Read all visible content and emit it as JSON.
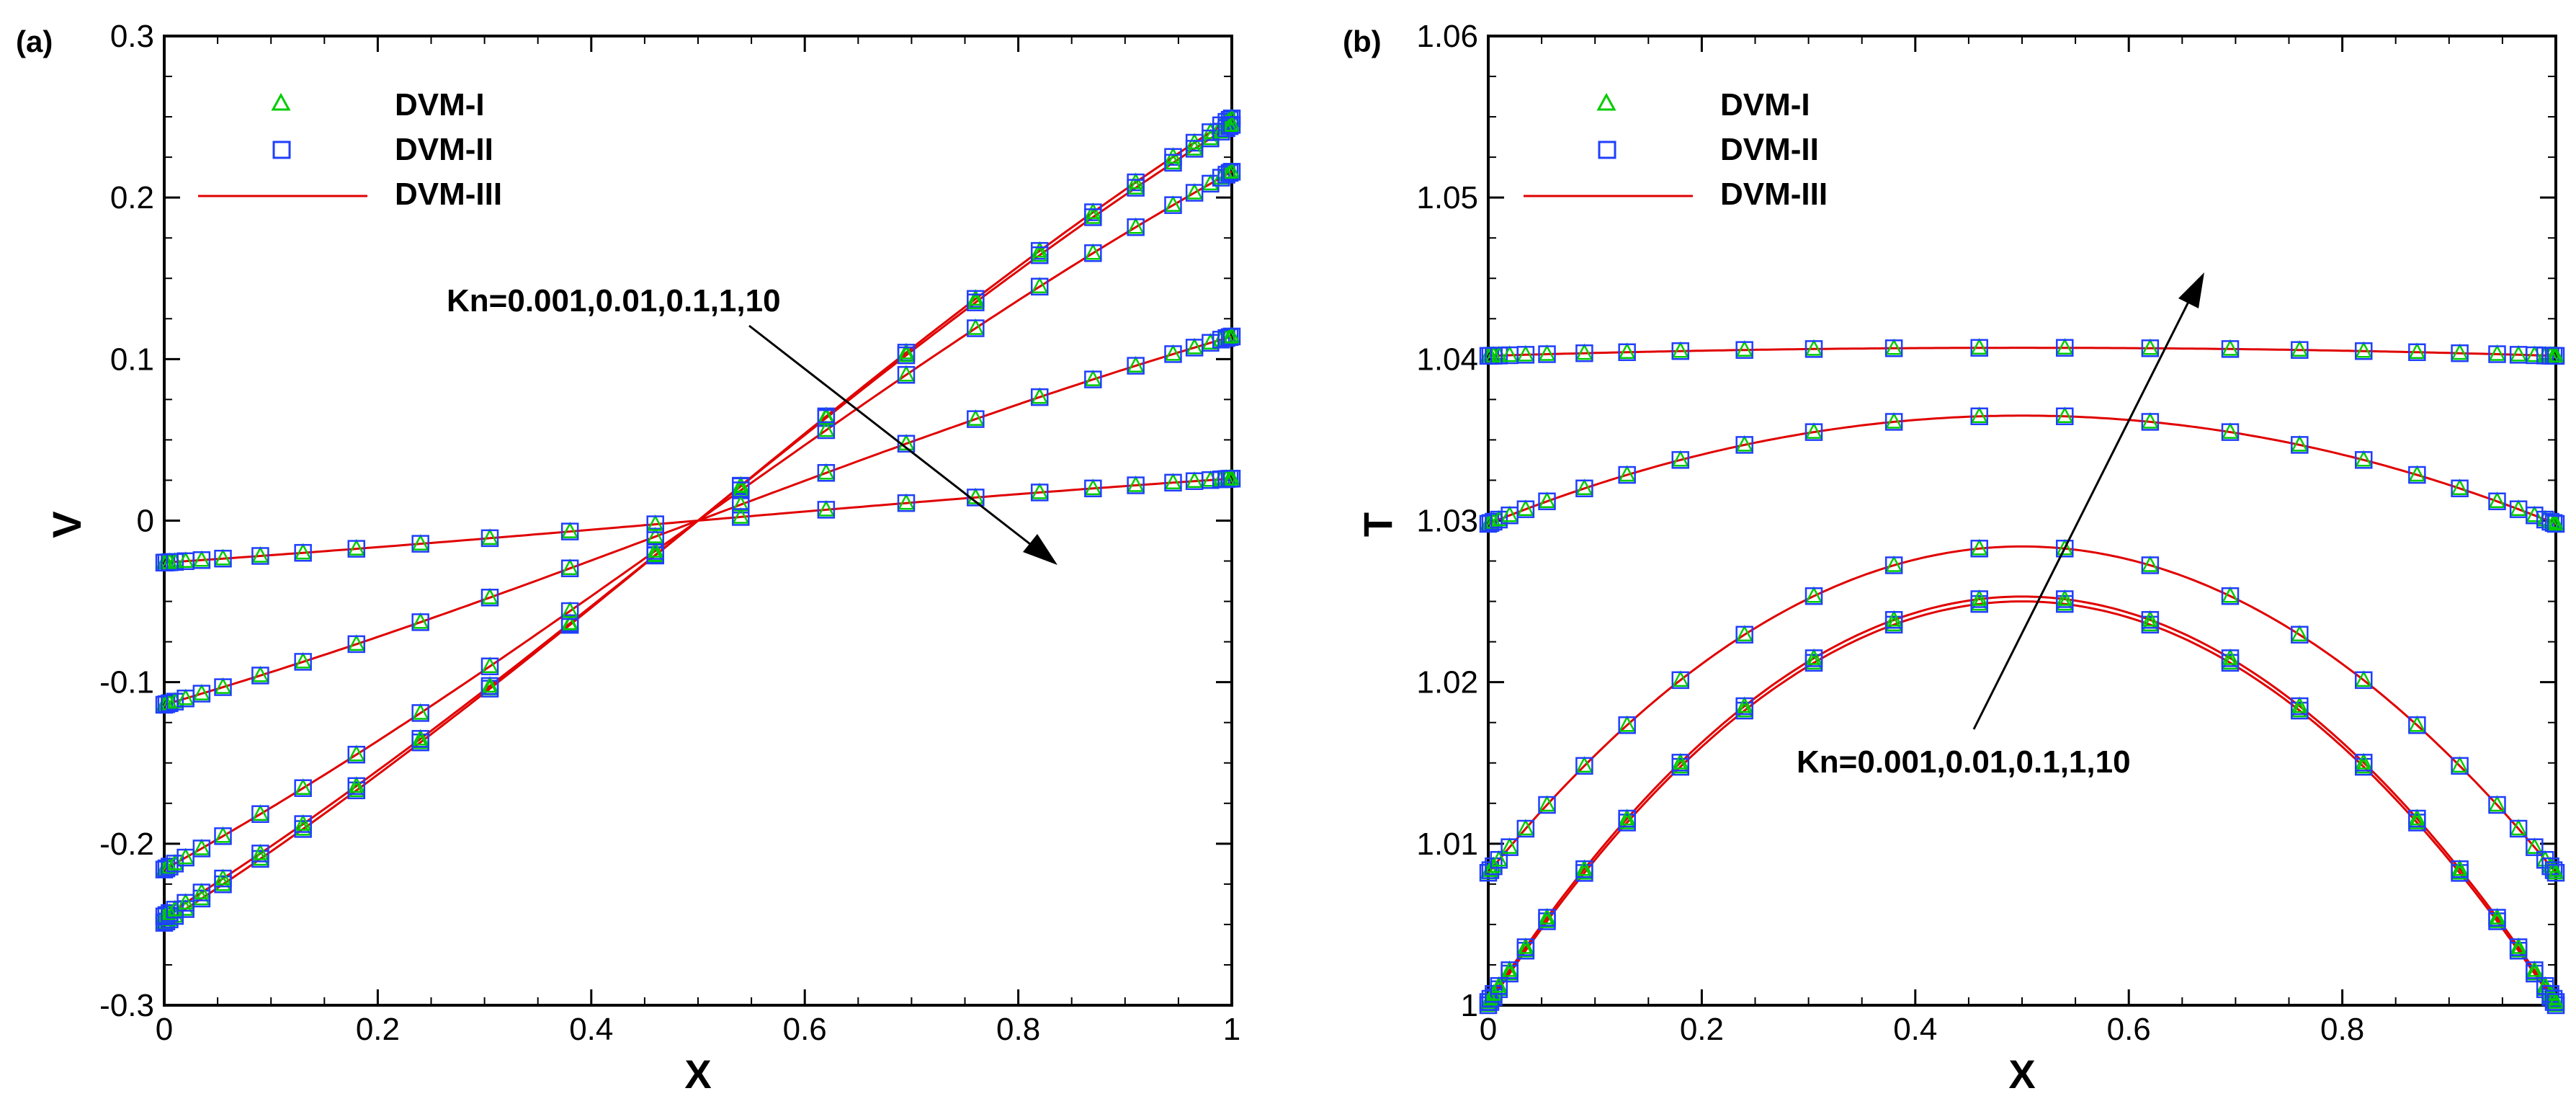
{
  "chart_data": [
    {
      "type": "line",
      "panel_label": "(a)",
      "xlabel": "X",
      "ylabel": "V",
      "xlim": [
        0,
        1
      ],
      "ylim": [
        -0.3,
        0.3
      ],
      "xticks": [
        0,
        0.2,
        0.4,
        0.6,
        0.8,
        1
      ],
      "xtick_labels": [
        "0",
        "0.2",
        "0.4",
        "0.6",
        "0.8",
        "1"
      ],
      "yticks": [
        -0.3,
        -0.2,
        -0.1,
        0,
        0.1,
        0.2,
        0.3
      ],
      "ytick_labels": [
        "-0.3",
        "-0.2",
        "-0.1",
        "0",
        "0.1",
        "0.2",
        "0.3"
      ],
      "legend": [
        {
          "label": "DVM-I",
          "marker": "triangle",
          "color": "#00cc00"
        },
        {
          "label": "DVM-II",
          "marker": "square",
          "color": "#1f3fff"
        },
        {
          "label": "DVM-III",
          "marker": "line",
          "color": "#e00000"
        }
      ],
      "legend_position": "top-left",
      "annotation": {
        "text": "Kn=0.001,0.01,0.1,1,10",
        "arrow": "down-right"
      },
      "series": [
        {
          "name": "Kn=0.001",
          "x": [
            0,
            0.5,
            1
          ],
          "y": [
            -0.249,
            0,
            0.249
          ]
        },
        {
          "name": "Kn=0.01",
          "x": [
            0,
            0.5,
            1
          ],
          "y": [
            -0.245,
            0,
            0.245
          ]
        },
        {
          "name": "Kn=0.1",
          "x": [
            0,
            0.5,
            1
          ],
          "y": [
            -0.216,
            0,
            0.216
          ]
        },
        {
          "name": "Kn=1",
          "x": [
            0,
            0.5,
            1
          ],
          "y": [
            -0.114,
            0,
            0.114
          ]
        },
        {
          "name": "Kn=10",
          "x": [
            0,
            0.5,
            1
          ],
          "y": [
            -0.026,
            0,
            0.026
          ]
        }
      ],
      "marker_x": [
        0,
        0.002,
        0.005,
        0.01,
        0.02,
        0.035,
        0.055,
        0.09,
        0.13,
        0.18,
        0.24,
        0.305,
        0.38,
        0.46,
        0.54,
        0.62,
        0.695,
        0.76,
        0.82,
        0.87,
        0.91,
        0.945,
        0.965,
        0.98,
        0.99,
        0.995,
        0.998,
        1
      ]
    },
    {
      "type": "line",
      "panel_label": "(b)",
      "xlabel": "X",
      "ylabel": "T",
      "xlim": [
        0,
        1
      ],
      "ylim": [
        1,
        1.06
      ],
      "xticks": [
        0,
        0.2,
        0.4,
        0.6,
        0.8
      ],
      "xtick_labels": [
        "0",
        "0.2",
        "0.4",
        "0.6",
        "0.8"
      ],
      "yticks": [
        1,
        1.01,
        1.02,
        1.03,
        1.04,
        1.05,
        1.06
      ],
      "ytick_labels": [
        "1",
        "1.01",
        "1.02",
        "1.03",
        "1.04",
        "1.05",
        "1.06"
      ],
      "legend": [
        {
          "label": "DVM-I",
          "marker": "triangle",
          "color": "#00cc00"
        },
        {
          "label": "DVM-II",
          "marker": "square",
          "color": "#1f3fff"
        },
        {
          "label": "DVM-III",
          "marker": "line",
          "color": "#e00000"
        }
      ],
      "legend_position": "top-left",
      "annotation": {
        "text": "Kn=0.001,0.01,0.1,1,10",
        "arrow": "up-right"
      },
      "series": [
        {
          "name": "Kn=0.001",
          "wall": 1.0,
          "center": 1.025
        },
        {
          "name": "Kn=0.01",
          "wall": 1.0002,
          "center": 1.0253
        },
        {
          "name": "Kn=0.1",
          "wall": 1.0082,
          "center": 1.0284
        },
        {
          "name": "Kn=1",
          "wall": 1.0298,
          "center": 1.0365
        },
        {
          "name": "Kn=10",
          "wall": 1.0402,
          "center": 1.0407
        }
      ],
      "marker_x": [
        0,
        0.002,
        0.005,
        0.01,
        0.02,
        0.035,
        0.055,
        0.09,
        0.13,
        0.18,
        0.24,
        0.305,
        0.38,
        0.46,
        0.54,
        0.62,
        0.695,
        0.76,
        0.82,
        0.87,
        0.91,
        0.945,
        0.965,
        0.98,
        0.99,
        0.995,
        0.998,
        1
      ]
    }
  ]
}
